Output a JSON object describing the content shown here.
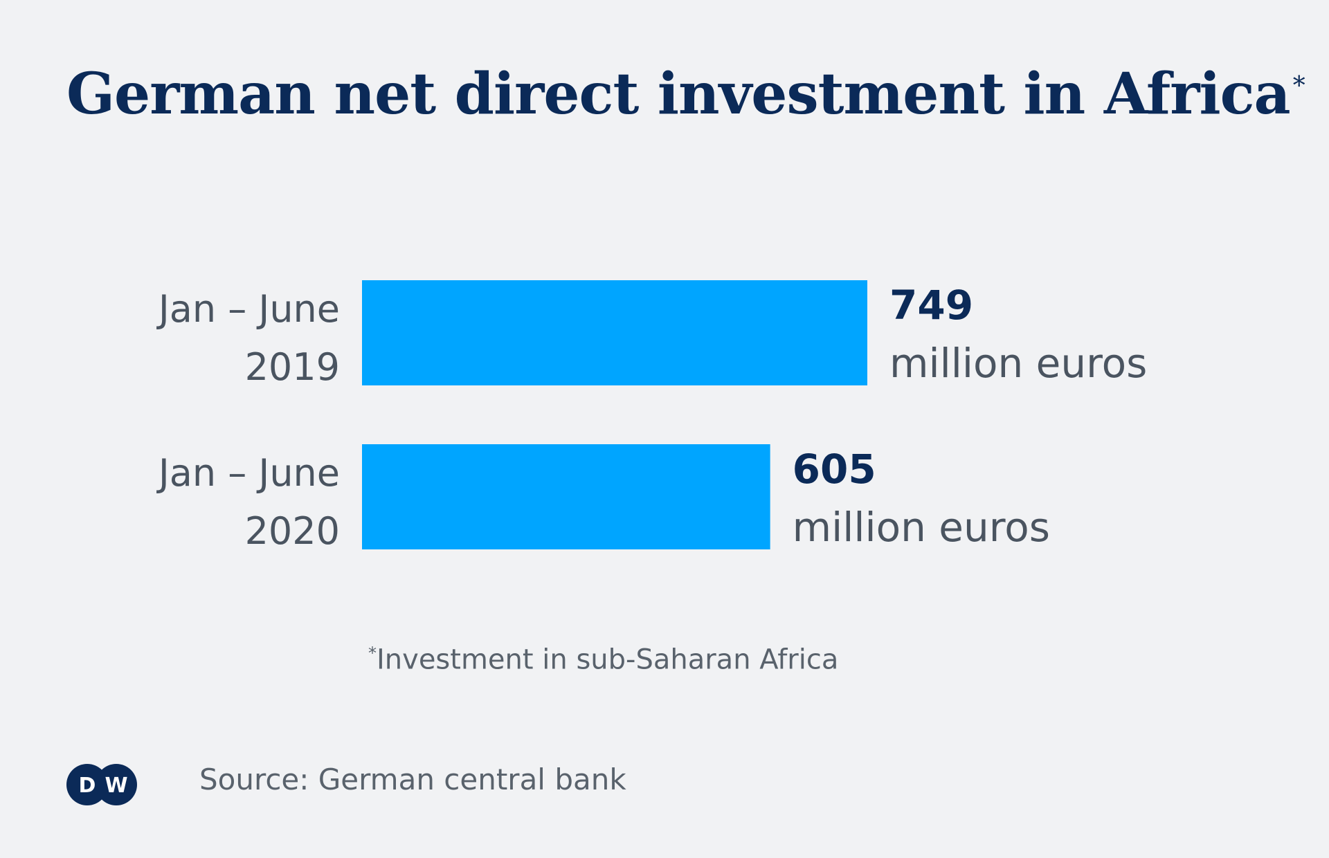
{
  "title": "German net direct investment in Africa",
  "title_marker": "*",
  "chart_data": {
    "type": "bar",
    "orientation": "horizontal",
    "categories": [
      [
        "Jan – June",
        "2019"
      ],
      [
        "Jan – June",
        "2020"
      ]
    ],
    "values": [
      749,
      605
    ],
    "value_labels": [
      "749",
      "605"
    ],
    "unit_label": "million euros",
    "bar_color": "#00a5ff",
    "xlim": [
      0,
      749
    ],
    "grid": false,
    "legend": "none"
  },
  "footnote": {
    "marker": "*",
    "text": "Investment in sub-Saharan Africa"
  },
  "source": "Source: German central bank",
  "logo": {
    "text": "DW",
    "icon": "dw-logo-icon",
    "color": "#0b2a58"
  }
}
